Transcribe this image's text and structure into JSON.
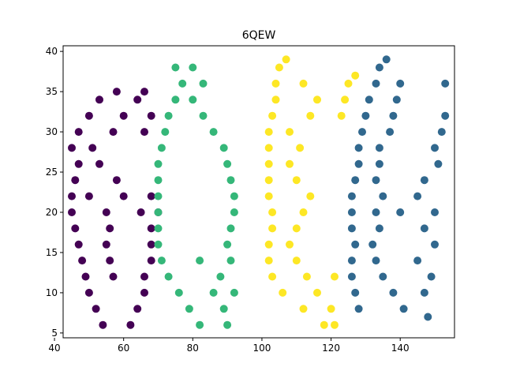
{
  "chart_data": {
    "type": "scatter",
    "title": "6QEW",
    "xlabel": "",
    "ylabel": "",
    "xlim": [
      42.5,
      155.7
    ],
    "ylim": [
      4.4,
      40.7
    ],
    "x_ticks": [
      40,
      60,
      80,
      100,
      120,
      140
    ],
    "y_ticks": [
      5,
      10,
      15,
      20,
      25,
      30,
      35,
      40
    ],
    "grid": false,
    "legend": "none",
    "colors": {
      "6": "#440154",
      "Q": "#35b779",
      "E": "#fde725",
      "W": "#31688e"
    },
    "series": [
      {
        "glyph": "6",
        "points": [
          [
            54,
            6
          ],
          [
            62,
            6
          ],
          [
            52,
            8
          ],
          [
            64,
            8
          ],
          [
            50,
            10
          ],
          [
            66,
            10
          ],
          [
            49,
            12
          ],
          [
            57,
            12
          ],
          [
            66,
            12
          ],
          [
            48,
            14
          ],
          [
            56,
            14
          ],
          [
            68,
            14
          ],
          [
            47,
            16
          ],
          [
            55,
            16
          ],
          [
            68,
            16
          ],
          [
            46,
            18
          ],
          [
            56,
            18
          ],
          [
            68,
            18
          ],
          [
            45,
            20
          ],
          [
            55,
            20
          ],
          [
            65,
            20
          ],
          [
            70,
            20
          ],
          [
            45,
            22
          ],
          [
            50,
            22
          ],
          [
            60,
            22
          ],
          [
            68,
            22
          ],
          [
            46,
            24
          ],
          [
            58,
            24
          ],
          [
            47,
            26
          ],
          [
            53,
            26
          ],
          [
            45,
            28
          ],
          [
            51,
            28
          ],
          [
            47,
            30
          ],
          [
            57,
            30
          ],
          [
            66,
            30
          ],
          [
            50,
            32
          ],
          [
            60,
            32
          ],
          [
            68,
            32
          ],
          [
            53,
            34
          ],
          [
            64,
            34
          ],
          [
            58,
            35
          ],
          [
            66,
            35
          ]
        ]
      },
      {
        "glyph": "Q",
        "points": [
          [
            82,
            6
          ],
          [
            90,
            6
          ],
          [
            79,
            8
          ],
          [
            89,
            8
          ],
          [
            76,
            10
          ],
          [
            86,
            10
          ],
          [
            92,
            10
          ],
          [
            73,
            12
          ],
          [
            88,
            12
          ],
          [
            71,
            14
          ],
          [
            82,
            14
          ],
          [
            91,
            14
          ],
          [
            70,
            16
          ],
          [
            90,
            16
          ],
          [
            70,
            18
          ],
          [
            91,
            18
          ],
          [
            70,
            20
          ],
          [
            92,
            20
          ],
          [
            70,
            22
          ],
          [
            92,
            22
          ],
          [
            70,
            24
          ],
          [
            91,
            24
          ],
          [
            70,
            26
          ],
          [
            90,
            26
          ],
          [
            71,
            28
          ],
          [
            89,
            28
          ],
          [
            72,
            30
          ],
          [
            86,
            30
          ],
          [
            73,
            32
          ],
          [
            83,
            32
          ],
          [
            75,
            34
          ],
          [
            80,
            34
          ],
          [
            77,
            36
          ],
          [
            83,
            36
          ],
          [
            75,
            38
          ],
          [
            80,
            38
          ]
        ]
      },
      {
        "glyph": "E",
        "points": [
          [
            118,
            6
          ],
          [
            121,
            6
          ],
          [
            112,
            8
          ],
          [
            120,
            8
          ],
          [
            106,
            10
          ],
          [
            116,
            10
          ],
          [
            103,
            12
          ],
          [
            113,
            12
          ],
          [
            121,
            12
          ],
          [
            102,
            14
          ],
          [
            110,
            14
          ],
          [
            102,
            16
          ],
          [
            108,
            16
          ],
          [
            103,
            18
          ],
          [
            110,
            18
          ],
          [
            103,
            20
          ],
          [
            112,
            20
          ],
          [
            102,
            22
          ],
          [
            114,
            22
          ],
          [
            102,
            24
          ],
          [
            110,
            24
          ],
          [
            102,
            26
          ],
          [
            108,
            26
          ],
          [
            102,
            28
          ],
          [
            111,
            28
          ],
          [
            102,
            30
          ],
          [
            108,
            30
          ],
          [
            103,
            32
          ],
          [
            114,
            32
          ],
          [
            123,
            32
          ],
          [
            104,
            34
          ],
          [
            116,
            34
          ],
          [
            124,
            34
          ],
          [
            104,
            36
          ],
          [
            112,
            36
          ],
          [
            125,
            36
          ],
          [
            105,
            38
          ],
          [
            127,
            37
          ],
          [
            107,
            39
          ]
        ]
      },
      {
        "glyph": "W",
        "points": [
          [
            128,
            8
          ],
          [
            141,
            8
          ],
          [
            148,
            7
          ],
          [
            127,
            10
          ],
          [
            138,
            10
          ],
          [
            147,
            10
          ],
          [
            126,
            12
          ],
          [
            135,
            12
          ],
          [
            149,
            12
          ],
          [
            126,
            14
          ],
          [
            133,
            14
          ],
          [
            145,
            14
          ],
          [
            127,
            16
          ],
          [
            132,
            16
          ],
          [
            150,
            16
          ],
          [
            126,
            18
          ],
          [
            134,
            18
          ],
          [
            147,
            18
          ],
          [
            126,
            20
          ],
          [
            133,
            20
          ],
          [
            140,
            20
          ],
          [
            150,
            20
          ],
          [
            126,
            22
          ],
          [
            135,
            22
          ],
          [
            145,
            22
          ],
          [
            127,
            24
          ],
          [
            133,
            24
          ],
          [
            147,
            24
          ],
          [
            128,
            26
          ],
          [
            134,
            26
          ],
          [
            151,
            26
          ],
          [
            128,
            28
          ],
          [
            134,
            28
          ],
          [
            150,
            28
          ],
          [
            129,
            30
          ],
          [
            137,
            30
          ],
          [
            152,
            30
          ],
          [
            130,
            32
          ],
          [
            138,
            32
          ],
          [
            153,
            32
          ],
          [
            131,
            34
          ],
          [
            139,
            34
          ],
          [
            133,
            36
          ],
          [
            140,
            36
          ],
          [
            153,
            36
          ],
          [
            134,
            38
          ],
          [
            136,
            39
          ]
        ]
      }
    ]
  }
}
